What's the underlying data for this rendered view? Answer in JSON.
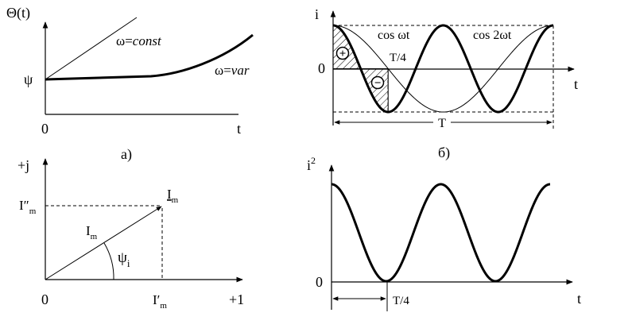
{
  "panel_a": {
    "y_label": "Θ(t)",
    "psi_label": "ψ",
    "origin_label": "0",
    "x_label": "t",
    "const_label_prefix": "ω=",
    "const_label_word": "const",
    "var_label_prefix": "ω=",
    "var_label_word": "var",
    "caption": "а)"
  },
  "panel_b": {
    "y_label": "i",
    "zero_label": "0",
    "x_label": "t",
    "cos_label": "cos ωt",
    "cos2_label": "cos 2ωt",
    "quarter_label": "T/4",
    "period_label": "T",
    "plus_sign": "+",
    "minus_sign": "−",
    "caption": "б)"
  },
  "panel_c": {
    "y_label": "+j",
    "x_label": "+1",
    "origin_label": "0",
    "im_imag_main": "I″",
    "im_imag_sub": "m",
    "im_real_main": "I′",
    "im_real_sub": "m",
    "vector_main": "I",
    "vector_sub": "m",
    "tip_main": "I",
    "tip_sub": "m",
    "angle_main": "ψ",
    "angle_sub": "i"
  },
  "panel_d": {
    "y_label_main": "i",
    "y_label_sup": "2",
    "zero_label": "0",
    "x_label": "t",
    "quarter_label": "T/4"
  },
  "curves": {
    "cos_periods": 1,
    "cos2_periods": 2,
    "squared_periods": 2
  }
}
